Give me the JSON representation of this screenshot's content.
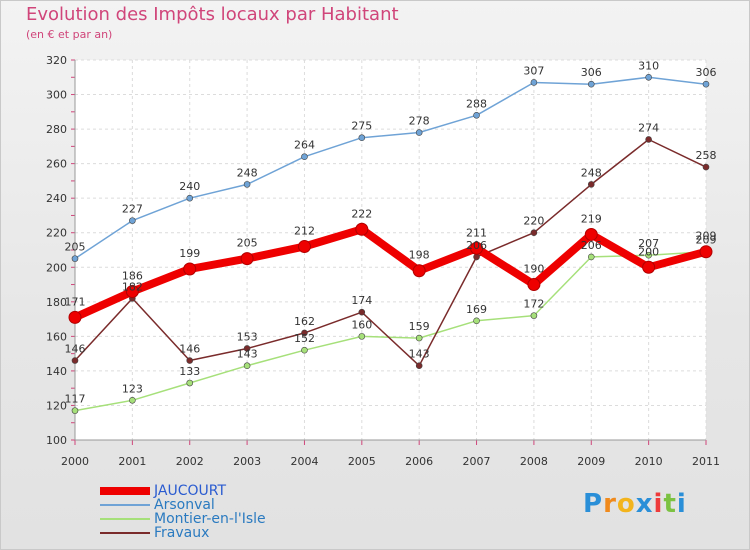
{
  "header": {
    "title": "Evolution des Impôts locaux par Habitant",
    "subtitle": "(en € et par an)"
  },
  "logo": {
    "letters": [
      "P",
      "r",
      "o",
      "x",
      "i",
      "t",
      "i"
    ],
    "colors": [
      "#2a8fd8",
      "#f08a1c",
      "#f3b41c",
      "#2a8fd8",
      "#ee3b3b",
      "#7cc242",
      "#2a8fd8"
    ]
  },
  "chart_data": {
    "type": "line",
    "title": "Evolution des Impôts locaux par Habitant",
    "subtitle": "(en € et par an)",
    "xlabel": "",
    "ylabel": "",
    "ylim": [
      100,
      320
    ],
    "yticks": [
      100,
      120,
      140,
      160,
      180,
      200,
      220,
      240,
      260,
      280,
      300,
      320
    ],
    "grid": true,
    "legend": "bottom-left",
    "x": [
      "2000",
      "2001",
      "2002",
      "2003",
      "2004",
      "2005",
      "2006",
      "2007",
      "2008",
      "2009",
      "2010",
      "2011"
    ],
    "series": [
      {
        "name": "JAUCOURT",
        "color": "#ee0000",
        "label_color": "#2a5bd0",
        "thick": true,
        "values": [
          171,
          186,
          199,
          205,
          212,
          222,
          198,
          211,
          190,
          219,
          200,
          209
        ]
      },
      {
        "name": "Arsonval",
        "color": "#6fa3d6",
        "label_color": "#2a7ac0",
        "thick": false,
        "values": [
          205,
          227,
          240,
          248,
          264,
          275,
          278,
          288,
          307,
          306,
          310,
          306
        ]
      },
      {
        "name": "Montier-en-l'Isle",
        "color": "#a6e07a",
        "label_color": "#2a7ac0",
        "thick": false,
        "values": [
          117,
          123,
          133,
          143,
          152,
          160,
          159,
          169,
          172,
          206,
          207,
          209
        ]
      },
      {
        "name": "Fravaux",
        "color": "#7a2b2b",
        "label_color": "#2a7ac0",
        "thick": false,
        "values": [
          146,
          182,
          146,
          153,
          162,
          174,
          143,
          206,
          220,
          248,
          274,
          258
        ]
      }
    ]
  }
}
